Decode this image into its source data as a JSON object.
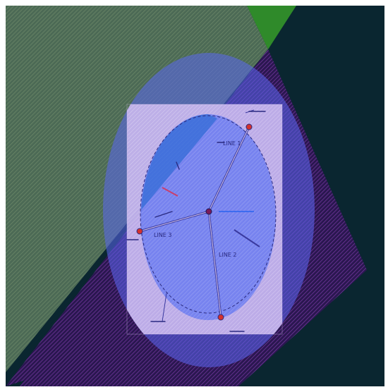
{
  "map": {
    "colors": {
      "background": "#0a2630",
      "green_area": "#2f8a2a",
      "green_area_hatch": "#556f55",
      "purple_area": "#3b1d63",
      "purple_area_hatch": "#8a3fb0",
      "blue_ellipse": "#5a66f0",
      "inner_circle": "#2e6ad4",
      "plan_sheet": "#d7c8ee",
      "plan_lines": "#2a2a80",
      "plan_markers": "#d4322e"
    },
    "plan": {
      "zone_labels": [
        "LINE 1",
        "LINE 2",
        "LINE 3"
      ],
      "markers": [
        "marker-top",
        "marker-left",
        "marker-bottom",
        "marker-center"
      ]
    }
  }
}
